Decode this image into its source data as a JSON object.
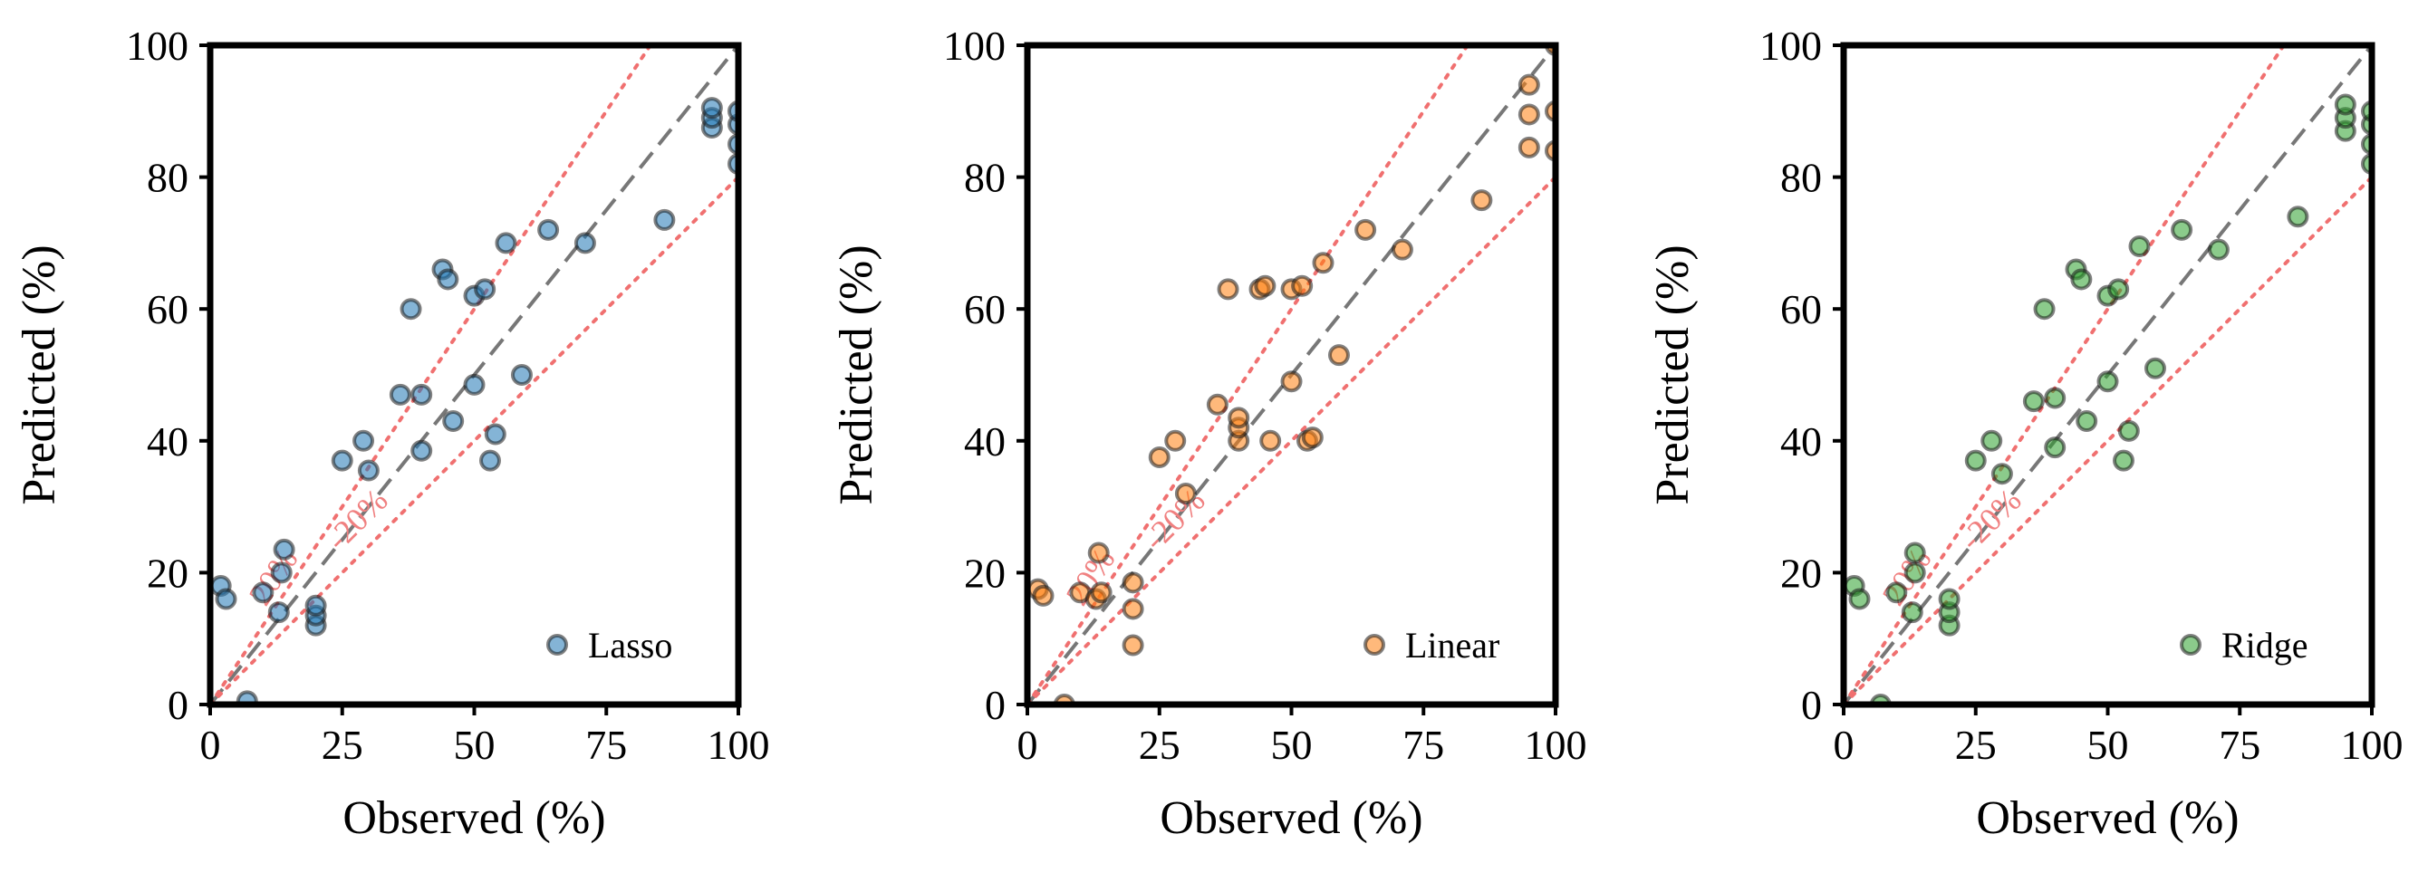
{
  "chart_data": [
    {
      "type": "scatter",
      "title": "",
      "xlabel": "Observed (%)",
      "ylabel": "Predicted (%)",
      "xlim": [
        0,
        100
      ],
      "ylim": [
        0,
        100
      ],
      "xticks": [
        "0",
        "25",
        "50",
        "75",
        "100"
      ],
      "yticks": [
        "0",
        "20",
        "40",
        "60",
        "80",
        "100"
      ],
      "legend": "Lasso",
      "legend_position": "lower-right",
      "color": "#1f77b4",
      "band_labels": [
        "20%",
        "-20%"
      ],
      "points": [
        [
          2,
          18
        ],
        [
          3,
          16
        ],
        [
          7,
          0.5
        ],
        [
          10,
          17
        ],
        [
          13,
          14
        ],
        [
          13.5,
          20
        ],
        [
          14,
          23.5
        ],
        [
          20,
          12
        ],
        [
          20,
          13.5
        ],
        [
          20,
          15
        ],
        [
          25,
          37
        ],
        [
          29,
          40
        ],
        [
          30,
          35.5
        ],
        [
          38,
          60
        ],
        [
          36,
          47
        ],
        [
          40,
          47
        ],
        [
          40,
          38.5
        ],
        [
          44,
          66
        ],
        [
          45,
          64.5
        ],
        [
          46,
          43
        ],
        [
          50,
          62
        ],
        [
          50,
          48.5
        ],
        [
          52,
          63
        ],
        [
          53,
          37
        ],
        [
          54,
          41
        ],
        [
          56,
          70
        ],
        [
          59,
          50
        ],
        [
          64,
          72
        ],
        [
          71,
          70
        ],
        [
          86,
          73.5
        ],
        [
          95,
          87.5
        ],
        [
          95,
          89
        ],
        [
          95,
          90.5
        ],
        [
          100,
          82
        ],
        [
          100,
          85
        ],
        [
          100,
          88
        ],
        [
          100,
          90
        ]
      ]
    },
    {
      "type": "scatter",
      "title": "",
      "xlabel": "Observed (%)",
      "ylabel": "Predicted (%)",
      "xlim": [
        0,
        100
      ],
      "ylim": [
        0,
        100
      ],
      "xticks": [
        "0",
        "25",
        "50",
        "75",
        "100"
      ],
      "yticks": [
        "0",
        "20",
        "40",
        "60",
        "80",
        "100"
      ],
      "legend": "Linear",
      "legend_position": "lower-right",
      "color": "#ff7f0e",
      "band_labels": [
        "20%",
        "-20%"
      ],
      "points": [
        [
          2,
          17.5
        ],
        [
          3,
          16.5
        ],
        [
          7,
          0
        ],
        [
          10,
          17
        ],
        [
          13,
          16
        ],
        [
          13.5,
          23
        ],
        [
          14,
          17
        ],
        [
          20,
          9
        ],
        [
          20,
          14.5
        ],
        [
          20,
          18.5
        ],
        [
          25,
          37.5
        ],
        [
          28,
          40
        ],
        [
          30,
          32
        ],
        [
          38,
          63
        ],
        [
          36,
          45.5
        ],
        [
          40,
          40
        ],
        [
          40,
          42
        ],
        [
          40,
          43.5
        ],
        [
          44,
          63
        ],
        [
          45,
          63.5
        ],
        [
          46,
          40
        ],
        [
          50,
          63
        ],
        [
          50,
          49
        ],
        [
          52,
          63.5
        ],
        [
          53,
          40
        ],
        [
          54,
          40.5
        ],
        [
          56,
          67
        ],
        [
          59,
          53
        ],
        [
          64,
          72
        ],
        [
          71,
          69
        ],
        [
          86,
          76.5
        ],
        [
          95,
          84.5
        ],
        [
          95,
          89.5
        ],
        [
          95,
          94
        ],
        [
          100,
          84
        ],
        [
          100,
          90
        ],
        [
          100,
          100
        ]
      ]
    },
    {
      "type": "scatter",
      "title": "",
      "xlabel": "Observed (%)",
      "ylabel": "Predicted (%)",
      "xlim": [
        0,
        100
      ],
      "ylim": [
        0,
        100
      ],
      "xticks": [
        "0",
        "25",
        "50",
        "75",
        "100"
      ],
      "yticks": [
        "0",
        "20",
        "40",
        "60",
        "80",
        "100"
      ],
      "legend": "Ridge",
      "legend_position": "lower-right",
      "color": "#2ca02c",
      "band_labels": [
        "20%",
        "-20%"
      ],
      "points": [
        [
          2,
          18
        ],
        [
          3,
          16
        ],
        [
          7,
          0
        ],
        [
          10,
          17
        ],
        [
          13,
          14
        ],
        [
          13.5,
          20
        ],
        [
          13.5,
          23
        ],
        [
          20,
          12
        ],
        [
          20,
          14
        ],
        [
          20,
          16
        ],
        [
          25,
          37
        ],
        [
          28,
          40
        ],
        [
          30,
          35
        ],
        [
          38,
          60
        ],
        [
          36,
          46
        ],
        [
          40,
          39
        ],
        [
          40,
          46.5
        ],
        [
          44,
          66
        ],
        [
          45,
          64.5
        ],
        [
          46,
          43
        ],
        [
          50,
          62
        ],
        [
          50,
          49
        ],
        [
          52,
          63
        ],
        [
          53,
          37
        ],
        [
          54,
          41.5
        ],
        [
          56,
          69.5
        ],
        [
          59,
          51
        ],
        [
          64,
          72
        ],
        [
          71,
          69
        ],
        [
          86,
          74
        ],
        [
          95,
          87
        ],
        [
          95,
          89
        ],
        [
          95,
          91
        ],
        [
          100,
          82
        ],
        [
          100,
          85
        ],
        [
          100,
          88
        ],
        [
          100,
          90
        ]
      ]
    }
  ]
}
